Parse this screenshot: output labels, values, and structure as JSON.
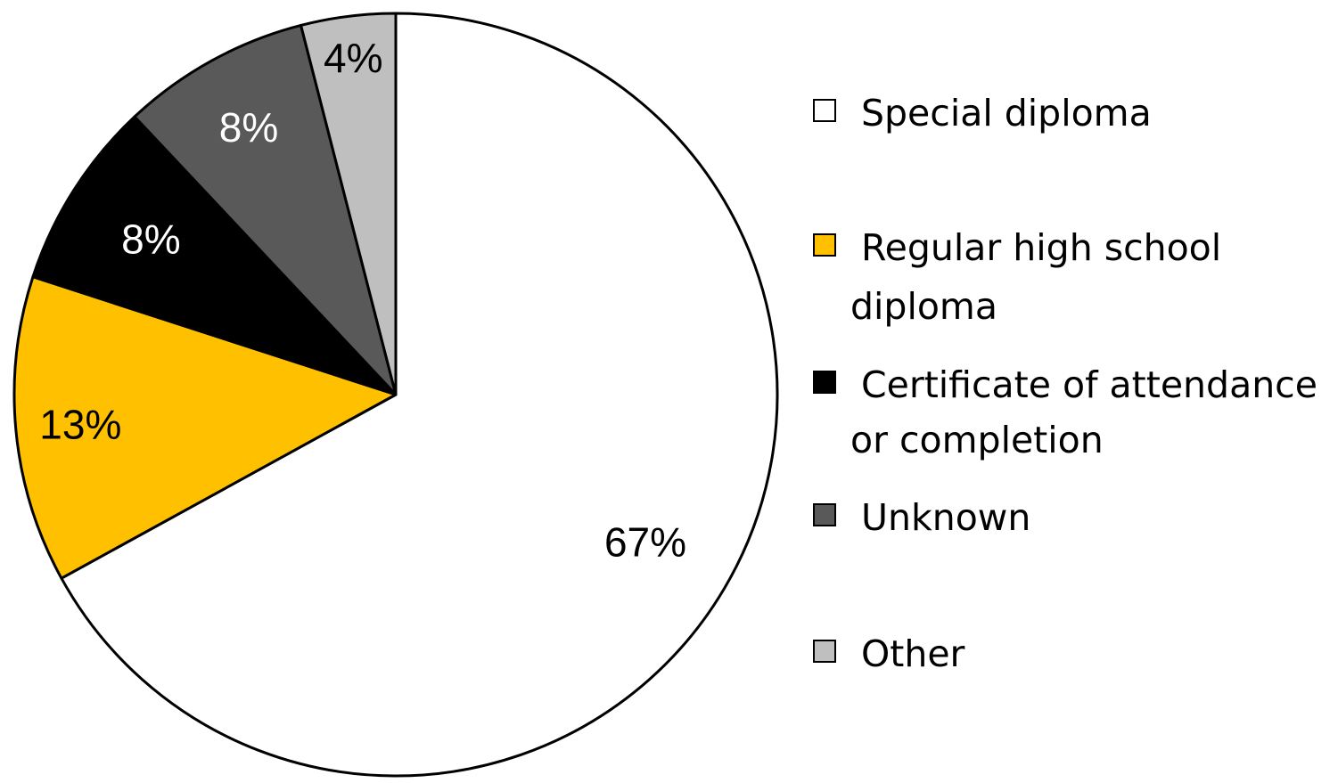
{
  "chart_data": {
    "type": "pie",
    "slices": [
      {
        "label": "Special diploma",
        "value": 67,
        "display": "67%",
        "color": "#ffffff",
        "label_color": "#000000"
      },
      {
        "label": "Regular high school diploma",
        "value": 13,
        "display": "13%",
        "color": "#ffc000",
        "label_color": "#000000"
      },
      {
        "label": "Certificate of attendance or completion",
        "value": 8,
        "display": "8%",
        "color": "#000000",
        "label_color": "#ffffff"
      },
      {
        "label": "Unknown",
        "value": 8,
        "display": "8%",
        "color": "#595959",
        "label_color": "#ffffff"
      },
      {
        "label": "Other",
        "value": 4,
        "display": "4%",
        "color": "#bfbfbf",
        "label_color": "#000000"
      }
    ],
    "legend": {
      "placement": "right",
      "items": [
        {
          "line1": "Special diploma",
          "line2": "",
          "color": "#ffffff"
        },
        {
          "line1": "Regular high school",
          "line2": "diploma",
          "color": "#ffc000"
        },
        {
          "line1": "Certificate of attendance",
          "line2": "or completion",
          "color": "#000000"
        },
        {
          "line1": "Unknown",
          "line2": "",
          "color": "#595959"
        },
        {
          "line1": "Other",
          "line2": "",
          "color": "#bfbfbf"
        }
      ]
    }
  }
}
